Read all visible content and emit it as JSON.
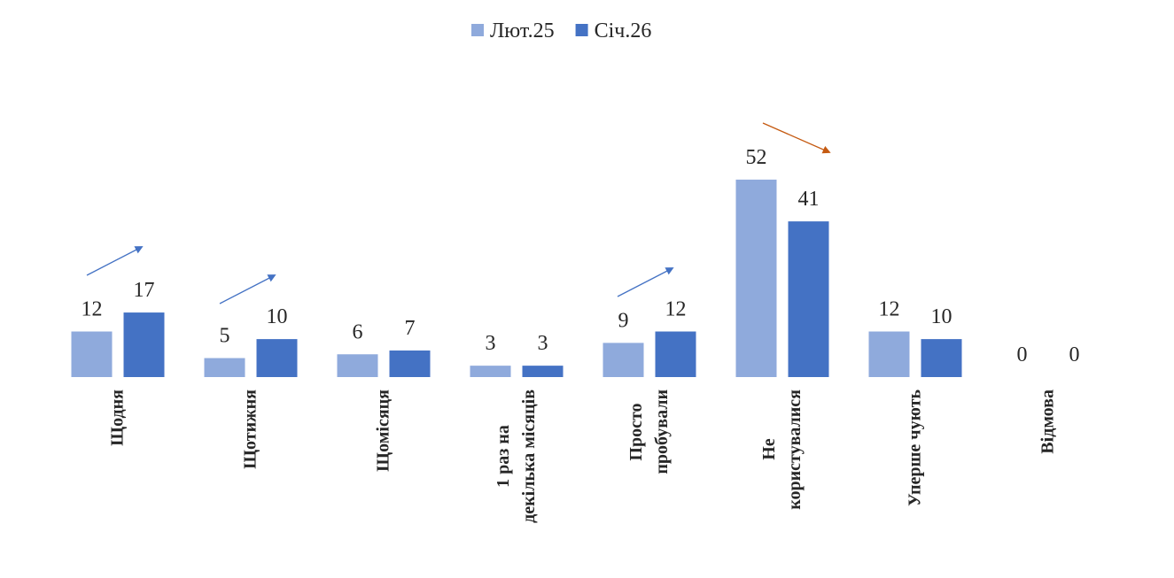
{
  "chart_data": {
    "type": "bar",
    "categories": [
      "Щодня",
      "Щотижня",
      "Щомісяця",
      "1 раз на\nдекілька місяців",
      "Просто\nпробували",
      "Не\nкористувалися",
      "Уперше чують",
      "Відмова"
    ],
    "series": [
      {
        "name": "Лют.25",
        "color": "#8faadc",
        "values": [
          12,
          5,
          6,
          3,
          9,
          52,
          12,
          0
        ]
      },
      {
        "name": "Січ.26",
        "color": "#4472c4",
        "values": [
          17,
          10,
          7,
          3,
          12,
          41,
          10,
          0
        ]
      }
    ],
    "legend": "top"
  }
}
